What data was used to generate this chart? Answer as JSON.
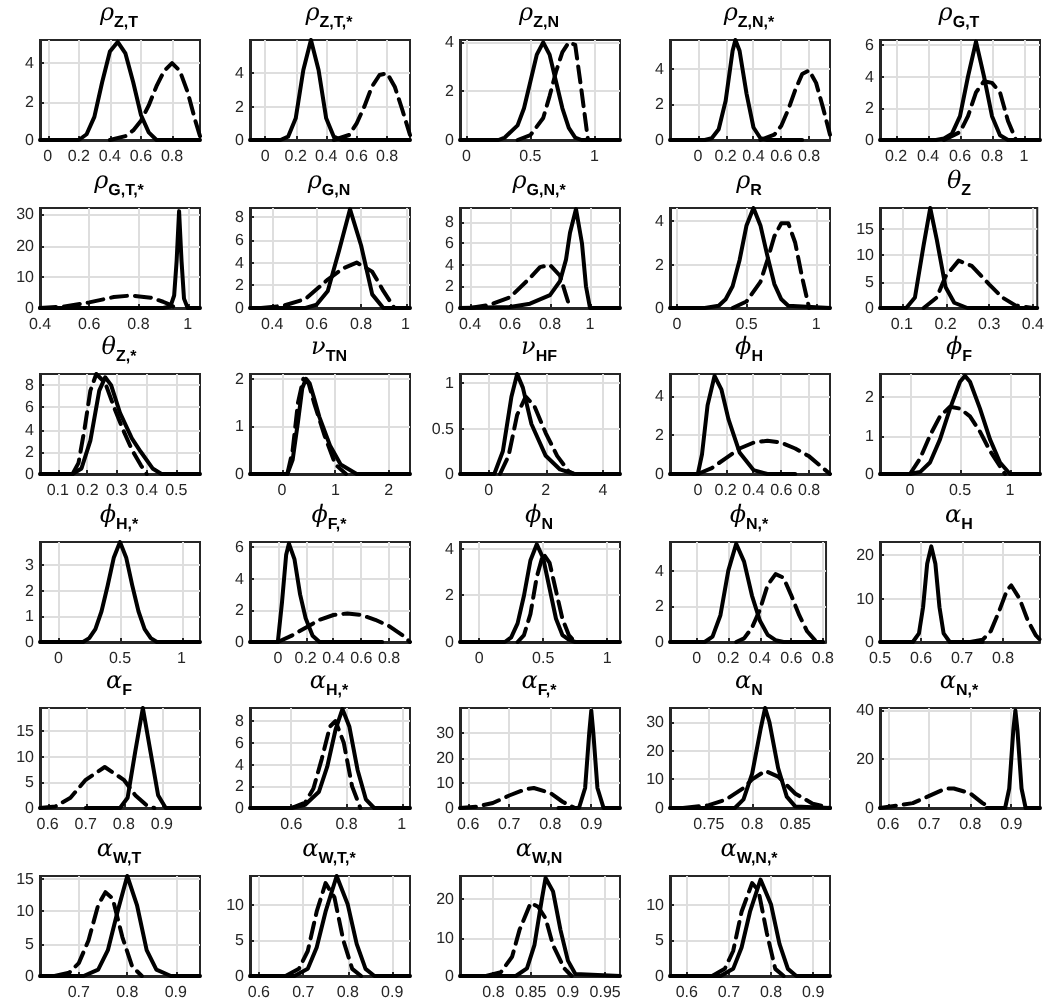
{
  "chart_data": [
    {
      "type": "line",
      "title": "ρ$_{Z,T}$",
      "xlim": [
        -0.05,
        0.98
      ],
      "xticks": [
        0,
        0.2,
        0.4,
        0.6,
        0.8
      ],
      "ylim": [
        0,
        5.2
      ],
      "yticks": [
        0,
        2,
        4
      ],
      "grid": true,
      "marker": "none",
      "series": [
        {
          "color": "#000000",
          "line_style": "solid",
          "x": [
            -0.05,
            0.2,
            0.25,
            0.3,
            0.35,
            0.4,
            0.45,
            0.5,
            0.55,
            0.6,
            0.65,
            0.7,
            0.98
          ],
          "values": [
            0,
            0,
            0.3,
            1.2,
            3.0,
            4.6,
            5.1,
            4.5,
            3.0,
            1.3,
            0.4,
            0,
            0
          ]
        },
        {
          "color": "#000000",
          "line_style": "dashed",
          "x": [
            0.4,
            0.5,
            0.55,
            0.6,
            0.65,
            0.7,
            0.75,
            0.8,
            0.85,
            0.9,
            0.95,
            0.98
          ],
          "values": [
            0,
            0.2,
            0.5,
            1.0,
            1.8,
            2.8,
            3.6,
            4.0,
            3.6,
            2.5,
            1.0,
            0.2
          ]
        }
      ]
    },
    {
      "type": "line",
      "title": "ρ$_{Z,T,*}$",
      "xlim": [
        -0.1,
        0.95
      ],
      "xticks": [
        0,
        0.2,
        0.4,
        0.6,
        0.8
      ],
      "ylim": [
        0,
        6
      ],
      "yticks": [
        0,
        2,
        4
      ],
      "grid": true,
      "marker": "none",
      "series": [
        {
          "color": "#000000",
          "line_style": "solid",
          "x": [
            -0.1,
            0.1,
            0.15,
            0.2,
            0.25,
            0.3,
            0.35,
            0.4,
            0.45,
            0.5,
            0.95
          ],
          "values": [
            0,
            0,
            0.2,
            1.3,
            4.2,
            6.0,
            4.2,
            1.3,
            0.2,
            0,
            0
          ]
        },
        {
          "color": "#000000",
          "line_style": "dashed",
          "x": [
            0.45,
            0.55,
            0.6,
            0.65,
            0.7,
            0.75,
            0.8,
            0.85,
            0.9,
            0.95
          ],
          "values": [
            0,
            0.3,
            1.0,
            2.0,
            3.2,
            3.9,
            4.0,
            3.2,
            1.8,
            0.3
          ]
        }
      ]
    },
    {
      "type": "line",
      "title": "ρ$_{Z,N}$",
      "xlim": [
        -0.05,
        1.2
      ],
      "xticks": [
        0,
        0.5,
        1
      ],
      "ylim": [
        0,
        4.1
      ],
      "yticks": [
        0,
        2,
        4
      ],
      "grid": true,
      "marker": "none",
      "series": [
        {
          "color": "#000000",
          "line_style": "solid",
          "x": [
            -0.05,
            0.25,
            0.3,
            0.4,
            0.45,
            0.5,
            0.55,
            0.6,
            0.65,
            0.7,
            0.75,
            0.8,
            0.85,
            0.9,
            1.2
          ],
          "values": [
            0,
            0,
            0.1,
            0.6,
            1.3,
            2.4,
            3.5,
            4.0,
            3.5,
            2.4,
            1.3,
            0.5,
            0.1,
            0,
            0
          ]
        },
        {
          "color": "#000000",
          "line_style": "dashed",
          "x": [
            0.4,
            0.5,
            0.6,
            0.65,
            0.7,
            0.75,
            0.8,
            0.85,
            0.9,
            0.95
          ],
          "values": [
            0,
            0.2,
            0.9,
            1.8,
            2.8,
            3.6,
            4.0,
            3.9,
            2.0,
            0
          ]
        }
      ]
    },
    {
      "type": "line",
      "title": "ρ$_{Z,N,*}$",
      "xlim": [
        -0.2,
        0.95
      ],
      "xticks": [
        0,
        0.2,
        0.4,
        0.6,
        0.8
      ],
      "ylim": [
        0,
        5.6
      ],
      "yticks": [
        0,
        2,
        4
      ],
      "grid": true,
      "marker": "none",
      "series": [
        {
          "color": "#000000",
          "line_style": "solid",
          "x": [
            -0.2,
            0.05,
            0.1,
            0.15,
            0.2,
            0.25,
            0.27,
            0.3,
            0.35,
            0.4,
            0.45,
            0.5,
            0.75
          ],
          "values": [
            0,
            0,
            0.1,
            0.6,
            2.2,
            5.0,
            5.6,
            5.0,
            2.6,
            0.7,
            0.1,
            0,
            0
          ]
        },
        {
          "color": "#000000",
          "line_style": "dashed",
          "x": [
            0.45,
            0.55,
            0.6,
            0.65,
            0.7,
            0.75,
            0.8,
            0.85,
            0.9,
            0.95
          ],
          "values": [
            0,
            0.3,
            0.8,
            1.7,
            2.8,
            3.7,
            3.9,
            3.2,
            1.8,
            0.3
          ]
        }
      ]
    },
    {
      "type": "line",
      "title": "ρ$_{G,T}$",
      "xlim": [
        0.1,
        1.1
      ],
      "xticks": [
        0.2,
        0.4,
        0.6,
        0.8,
        1
      ],
      "ylim": [
        0,
        6.3
      ],
      "yticks": [
        0,
        2,
        4,
        6
      ],
      "grid": true,
      "marker": "none",
      "series": [
        {
          "color": "#000000",
          "line_style": "solid",
          "x": [
            0.1,
            0.45,
            0.5,
            0.55,
            0.6,
            0.65,
            0.7,
            0.75,
            0.8,
            0.85,
            0.9,
            1.1
          ],
          "values": [
            0,
            0,
            0.1,
            0.4,
            1.5,
            4.0,
            6.2,
            4.0,
            1.5,
            0.3,
            0,
            0
          ]
        },
        {
          "color": "#000000",
          "line_style": "dashed",
          "x": [
            0.5,
            0.6,
            0.65,
            0.7,
            0.75,
            0.8,
            0.85,
            0.9,
            0.95
          ],
          "values": [
            0,
            0.5,
            1.5,
            3.0,
            3.7,
            3.6,
            3.0,
            1.2,
            0
          ]
        }
      ]
    },
    {
      "type": "line",
      "title": "ρ$_{G,T,*}$",
      "xlim": [
        0.4,
        1.05
      ],
      "xticks": [
        0.4,
        0.6,
        0.8,
        1
      ],
      "ylim": [
        0,
        32
      ],
      "yticks": [
        0,
        10,
        20,
        30
      ],
      "grid": true,
      "marker": "none",
      "series": [
        {
          "color": "#000000",
          "line_style": "solid",
          "x": [
            0.4,
            0.9,
            0.93,
            0.945,
            0.955,
            0.965,
            0.975,
            0.985,
            1.0,
            1.05
          ],
          "values": [
            0,
            0,
            0.5,
            4,
            15,
            31,
            15,
            3,
            0,
            0
          ]
        },
        {
          "color": "#000000",
          "line_style": "dashed",
          "x": [
            0.4,
            0.5,
            0.6,
            0.7,
            0.77,
            0.85,
            0.9,
            0.93,
            0.95
          ],
          "values": [
            0,
            0.5,
            1.8,
            3.5,
            4.0,
            3.3,
            2.0,
            1.0,
            0
          ]
        }
      ]
    },
    {
      "type": "line",
      "title": "ρ$_{G,N}$",
      "xlim": [
        0.3,
        1.02
      ],
      "xticks": [
        0.4,
        0.6,
        0.8,
        1
      ],
      "ylim": [
        0,
        8.8
      ],
      "yticks": [
        0,
        2,
        4,
        6,
        8
      ],
      "grid": true,
      "marker": "none",
      "series": [
        {
          "color": "#000000",
          "line_style": "solid",
          "x": [
            0.3,
            0.55,
            0.6,
            0.65,
            0.7,
            0.75,
            0.8,
            0.85,
            0.9,
            1.02
          ],
          "values": [
            0,
            0,
            0.3,
            1.5,
            5.0,
            8.7,
            5.5,
            1.2,
            0,
            0
          ]
        },
        {
          "color": "#000000",
          "line_style": "dashed",
          "x": [
            0.35,
            0.45,
            0.55,
            0.65,
            0.72,
            0.78,
            0.85,
            0.9,
            0.95
          ],
          "values": [
            0,
            0.2,
            0.8,
            2.5,
            3.5,
            4.0,
            3.2,
            1.5,
            0
          ]
        }
      ]
    },
    {
      "type": "line",
      "title": "ρ$_{G,N,*}$",
      "xlim": [
        0.35,
        1.15
      ],
      "xticks": [
        0.4,
        0.6,
        0.8,
        1
      ],
      "ylim": [
        0,
        9.3
      ],
      "yticks": [
        0,
        2,
        4,
        6,
        8
      ],
      "grid": true,
      "marker": "none",
      "series": [
        {
          "color": "#000000",
          "line_style": "solid",
          "x": [
            0.35,
            0.6,
            0.7,
            0.8,
            0.85,
            0.88,
            0.9,
            0.93,
            0.96,
            0.98,
            1.0,
            1.15
          ],
          "values": [
            0,
            0.1,
            0.4,
            1.2,
            2.5,
            4.5,
            7.0,
            9.2,
            6.0,
            2.0,
            0,
            0
          ]
        },
        {
          "color": "#000000",
          "line_style": "dashed",
          "x": [
            0.4,
            0.5,
            0.6,
            0.7,
            0.75,
            0.8,
            0.85,
            0.88,
            0.9
          ],
          "values": [
            0,
            0.3,
            1.0,
            2.8,
            3.8,
            4.0,
            3.0,
            1.2,
            0
          ]
        }
      ]
    },
    {
      "type": "line",
      "title": "ρ$_{R}$",
      "xlim": [
        -0.05,
        1.1
      ],
      "xticks": [
        0,
        0.5,
        1
      ],
      "ylim": [
        0,
        4.6
      ],
      "yticks": [
        0,
        2,
        4
      ],
      "grid": true,
      "marker": "none",
      "series": [
        {
          "color": "#000000",
          "line_style": "solid",
          "x": [
            -0.05,
            0.2,
            0.3,
            0.35,
            0.4,
            0.45,
            0.5,
            0.55,
            0.6,
            0.65,
            0.7,
            0.75,
            0.8,
            1.1
          ],
          "values": [
            0,
            0,
            0.1,
            0.4,
            1.0,
            2.2,
            3.8,
            4.6,
            3.8,
            2.4,
            1.1,
            0.4,
            0.1,
            0
          ]
        },
        {
          "color": "#000000",
          "line_style": "dashed",
          "x": [
            0.4,
            0.5,
            0.6,
            0.65,
            0.7,
            0.75,
            0.8,
            0.85,
            0.9,
            0.95
          ],
          "values": [
            0,
            0.3,
            1.2,
            2.2,
            3.3,
            3.9,
            3.9,
            3.0,
            1.4,
            0
          ]
        }
      ]
    },
    {
      "type": "line",
      "title": "θ$_{Z}$",
      "xlim": [
        0.05,
        0.41
      ],
      "xticks": [
        0.1,
        0.2,
        0.3,
        0.4
      ],
      "ylim": [
        0,
        19
      ],
      "yticks": [
        0,
        5,
        10,
        15
      ],
      "grid": true,
      "marker": "none",
      "series": [
        {
          "color": "#000000",
          "line_style": "solid",
          "x": [
            0.05,
            0.11,
            0.13,
            0.15,
            0.165,
            0.18,
            0.2,
            0.22,
            0.25,
            0.41
          ],
          "values": [
            0,
            0,
            2,
            12,
            19,
            13,
            4,
            1,
            0,
            0
          ]
        },
        {
          "color": "#000000",
          "line_style": "dashed",
          "x": [
            0.15,
            0.18,
            0.2,
            0.23,
            0.26,
            0.3,
            0.33,
            0.36,
            0.4
          ],
          "values": [
            0,
            2,
            6,
            9,
            8,
            4.5,
            2,
            0.5,
            0
          ]
        }
      ]
    },
    {
      "type": "line",
      "title": "θ$_{Z,*}$",
      "xlim": [
        0.04,
        0.58
      ],
      "xticks": [
        0.1,
        0.2,
        0.3,
        0.4,
        0.5
      ],
      "ylim": [
        0,
        9
      ],
      "yticks": [
        0,
        2,
        4,
        6,
        8
      ],
      "grid": true,
      "marker": "none",
      "series": [
        {
          "color": "#000000",
          "line_style": "solid",
          "x": [
            0.04,
            0.15,
            0.18,
            0.21,
            0.24,
            0.26,
            0.28,
            0.31,
            0.35,
            0.38,
            0.42,
            0.45,
            0.58
          ],
          "values": [
            0,
            0,
            0.5,
            3,
            7.5,
            8.7,
            8,
            5.5,
            3.2,
            2,
            0.5,
            0,
            0
          ]
        },
        {
          "color": "#000000",
          "line_style": "dashed",
          "x": [
            0.15,
            0.17,
            0.19,
            0.21,
            0.23,
            0.26,
            0.29,
            0.32,
            0.35,
            0.38,
            0.4
          ],
          "values": [
            0,
            1,
            4,
            7.5,
            9,
            8.2,
            6,
            4,
            2.2,
            0.8,
            0
          ]
        }
      ]
    },
    {
      "type": "line",
      "title": "ν$_{TN}$",
      "xlim": [
        -0.6,
        2.4
      ],
      "xticks": [
        0,
        1,
        2
      ],
      "ylim": [
        0,
        2.1
      ],
      "yticks": [
        0,
        1,
        2
      ],
      "grid": true,
      "marker": "none",
      "series": [
        {
          "color": "#000000",
          "line_style": "solid",
          "x": [
            -0.6,
            0.1,
            0.2,
            0.3,
            0.38,
            0.45,
            0.52,
            0.6,
            0.7,
            0.9,
            1.1,
            1.4,
            2.4
          ],
          "values": [
            0,
            0,
            0.3,
            1.1,
            1.8,
            2.0,
            1.9,
            1.6,
            1.2,
            0.6,
            0.2,
            0,
            0
          ]
        },
        {
          "color": "#000000",
          "line_style": "dashed",
          "x": [
            0.1,
            0.2,
            0.3,
            0.4,
            0.5,
            0.6,
            0.8,
            1.0,
            1.2
          ],
          "values": [
            0,
            0.5,
            1.5,
            2.0,
            1.9,
            1.5,
            0.8,
            0.2,
            0
          ]
        }
      ]
    },
    {
      "type": "line",
      "title": "ν$_{HF}$",
      "xlim": [
        -1,
        4.6
      ],
      "xticks": [
        0,
        2,
        4
      ],
      "ylim": [
        0,
        1.1
      ],
      "yticks": [
        0,
        0.5,
        1
      ],
      "grid": true,
      "marker": "none",
      "series": [
        {
          "color": "#000000",
          "line_style": "solid",
          "x": [
            -1,
            0.2,
            0.5,
            0.8,
            1.0,
            1.2,
            1.5,
            2.0,
            2.5,
            3.0,
            4.6
          ],
          "values": [
            0,
            0,
            0.25,
            0.85,
            1.1,
            0.95,
            0.55,
            0.2,
            0.05,
            0,
            0
          ]
        },
        {
          "color": "#000000",
          "line_style": "dashed",
          "x": [
            0.4,
            0.7,
            1.0,
            1.3,
            1.6,
            2.0,
            2.4,
            2.8,
            3.0
          ],
          "values": [
            0,
            0.2,
            0.65,
            0.85,
            0.75,
            0.45,
            0.2,
            0.03,
            0
          ]
        }
      ]
    },
    {
      "type": "line",
      "title": "ϕ$_{H}$",
      "xlim": [
        -0.2,
        0.95
      ],
      "xticks": [
        0,
        0.2,
        0.4,
        0.6,
        0.8
      ],
      "ylim": [
        0,
        5.1
      ],
      "yticks": [
        0,
        2,
        4
      ],
      "grid": true,
      "marker": "none",
      "series": [
        {
          "color": "#000000",
          "line_style": "solid",
          "x": [
            -0.2,
            0,
            0.03,
            0.07,
            0.12,
            0.17,
            0.22,
            0.3,
            0.4,
            0.5,
            0.7
          ],
          "values": [
            0,
            0,
            1,
            3.5,
            5,
            4.3,
            2.8,
            1.1,
            0.2,
            0,
            0
          ]
        },
        {
          "color": "#000000",
          "line_style": "dashed",
          "x": [
            0,
            0.1,
            0.2,
            0.3,
            0.4,
            0.5,
            0.6,
            0.7,
            0.8,
            0.9,
            0.95
          ],
          "values": [
            0,
            0.3,
            0.8,
            1.3,
            1.6,
            1.7,
            1.6,
            1.3,
            0.9,
            0.3,
            0
          ]
        }
      ]
    },
    {
      "type": "line",
      "title": "ϕ$_{F}$",
      "xlim": [
        -0.3,
        1.3
      ],
      "xticks": [
        0,
        0.5,
        1
      ],
      "ylim": [
        0,
        2.6
      ],
      "yticks": [
        0,
        1,
        2
      ],
      "grid": true,
      "marker": "none",
      "series": [
        {
          "color": "#000000",
          "line_style": "solid",
          "x": [
            -0.3,
            0,
            0.1,
            0.2,
            0.3,
            0.4,
            0.5,
            0.55,
            0.6,
            0.7,
            0.8,
            0.9,
            1.0,
            1.3
          ],
          "values": [
            0,
            0,
            0.05,
            0.3,
            0.9,
            1.7,
            2.4,
            2.55,
            2.4,
            1.7,
            0.9,
            0.3,
            0,
            0
          ]
        },
        {
          "color": "#000000",
          "line_style": "dashed",
          "x": [
            0,
            0.1,
            0.2,
            0.3,
            0.4,
            0.5,
            0.6,
            0.7,
            0.8,
            0.9,
            0.95
          ],
          "values": [
            0,
            0.4,
            1.0,
            1.5,
            1.75,
            1.7,
            1.5,
            1.1,
            0.6,
            0.2,
            0
          ]
        }
      ]
    },
    {
      "type": "line",
      "title": "ϕ$_{H,*}$",
      "xlim": [
        -0.15,
        1.15
      ],
      "xticks": [
        0,
        0.5,
        1
      ],
      "ylim": [
        0,
        3.9
      ],
      "yticks": [
        0,
        1,
        2,
        3
      ],
      "grid": true,
      "marker": "none",
      "series": [
        {
          "color": "#000000",
          "line_style": "solid",
          "x": [
            -0.15,
            0.2,
            0.25,
            0.3,
            0.35,
            0.4,
            0.45,
            0.5,
            0.55,
            0.6,
            0.65,
            0.7,
            0.75,
            0.8,
            1.15
          ],
          "values": [
            0,
            0,
            0.15,
            0.5,
            1.2,
            2.2,
            3.3,
            3.9,
            3.3,
            2.2,
            1.2,
            0.5,
            0.15,
            0,
            0
          ]
        }
      ]
    },
    {
      "type": "line",
      "title": "ϕ$_{F,*}$",
      "xlim": [
        -0.2,
        0.95
      ],
      "xticks": [
        0,
        0.2,
        0.4,
        0.6,
        0.8
      ],
      "ylim": [
        0,
        6.3
      ],
      "yticks": [
        0,
        2,
        4,
        6
      ],
      "grid": true,
      "marker": "none",
      "series": [
        {
          "color": "#000000",
          "line_style": "solid",
          "x": [
            -0.2,
            0,
            0.03,
            0.06,
            0.08,
            0.12,
            0.16,
            0.2,
            0.25,
            0.3,
            0.75
          ],
          "values": [
            0,
            0,
            2.5,
            5.5,
            6.2,
            5.2,
            3,
            1.5,
            0.4,
            0,
            0
          ]
        },
        {
          "color": "#000000",
          "line_style": "dashed",
          "x": [
            0,
            0.1,
            0.2,
            0.3,
            0.4,
            0.5,
            0.6,
            0.7,
            0.8,
            0.9,
            0.95
          ],
          "values": [
            0,
            0.4,
            0.9,
            1.4,
            1.7,
            1.8,
            1.7,
            1.4,
            1.0,
            0.4,
            0
          ]
        }
      ]
    },
    {
      "type": "line",
      "title": "ϕ$_{N}$",
      "xlim": [
        -0.15,
        1.1
      ],
      "xticks": [
        0,
        0.5,
        1
      ],
      "ylim": [
        0,
        4.3
      ],
      "yticks": [
        0,
        2,
        4
      ],
      "grid": true,
      "marker": "none",
      "series": [
        {
          "color": "#000000",
          "line_style": "solid",
          "x": [
            -0.15,
            0.2,
            0.25,
            0.3,
            0.35,
            0.4,
            0.45,
            0.5,
            0.55,
            0.6,
            0.65,
            0.7,
            0.75,
            1.1
          ],
          "values": [
            0,
            0,
            0.2,
            0.8,
            2.0,
            3.5,
            4.2,
            3.6,
            2.3,
            1.0,
            0.3,
            0.1,
            0,
            0
          ]
        },
        {
          "color": "#000000",
          "line_style": "dashed",
          "x": [
            0.3,
            0.35,
            0.4,
            0.45,
            0.5,
            0.55,
            0.6,
            0.65,
            0.7,
            0.75
          ],
          "values": [
            0,
            0.3,
            1.2,
            2.8,
            3.8,
            3.4,
            2.2,
            1.0,
            0.3,
            0
          ]
        }
      ]
    },
    {
      "type": "line",
      "title": "ϕ$_{N,*}$",
      "xlim": [
        -0.17,
        0.82
      ],
      "xticks": [
        0,
        0.2,
        0.4,
        0.6,
        0.8
      ],
      "ylim": [
        0,
        5.6
      ],
      "yticks": [
        0,
        2,
        4
      ],
      "grid": true,
      "marker": "none",
      "series": [
        {
          "color": "#000000",
          "line_style": "solid",
          "x": [
            -0.17,
            0.05,
            0.1,
            0.15,
            0.2,
            0.25,
            0.3,
            0.35,
            0.4,
            0.45,
            0.5,
            0.55,
            0.8
          ],
          "values": [
            0,
            0,
            0.3,
            1.5,
            4.0,
            5.5,
            4.5,
            2.6,
            1.2,
            0.4,
            0.1,
            0,
            0
          ]
        },
        {
          "color": "#000000",
          "line_style": "dashed",
          "x": [
            0.25,
            0.3,
            0.35,
            0.4,
            0.45,
            0.5,
            0.55,
            0.6,
            0.65,
            0.7,
            0.75,
            0.8
          ],
          "values": [
            0,
            0.2,
            0.8,
            1.8,
            3.2,
            3.8,
            3.6,
            2.6,
            1.5,
            0.6,
            0.1,
            0
          ]
        }
      ]
    },
    {
      "type": "line",
      "title": "α$_{H}$",
      "xlim": [
        0.5,
        0.89
      ],
      "xticks": [
        0.5,
        0.6,
        0.7,
        0.8
      ],
      "ylim": [
        0,
        23
      ],
      "yticks": [
        0,
        10,
        20
      ],
      "grid": true,
      "marker": "none",
      "series": [
        {
          "color": "#000000",
          "line_style": "solid",
          "x": [
            0.5,
            0.58,
            0.595,
            0.605,
            0.615,
            0.625,
            0.635,
            0.645,
            0.655,
            0.67,
            0.75
          ],
          "values": [
            0,
            0,
            2,
            8,
            18,
            22,
            18,
            8,
            2,
            0,
            0
          ]
        },
        {
          "color": "#000000",
          "line_style": "dashed",
          "x": [
            0.72,
            0.75,
            0.77,
            0.79,
            0.81,
            0.82,
            0.84,
            0.86,
            0.88,
            0.89
          ],
          "values": [
            0,
            0.5,
            2.5,
            7,
            12,
            13,
            10,
            5,
            1.5,
            0.5
          ]
        }
      ]
    },
    {
      "type": "line",
      "title": "α$_{F}$",
      "xlim": [
        0.58,
        1.0
      ],
      "xticks": [
        0.6,
        0.7,
        0.8,
        0.9
      ],
      "ylim": [
        0,
        19.5
      ],
      "yticks": [
        0,
        5,
        10,
        15
      ],
      "grid": true,
      "marker": "none",
      "series": [
        {
          "color": "#000000",
          "line_style": "solid",
          "x": [
            0.7,
            0.79,
            0.81,
            0.83,
            0.85,
            0.87,
            0.89,
            0.91,
            1.0
          ],
          "values": [
            0,
            0,
            2,
            11,
            19.5,
            11,
            2.5,
            0,
            0
          ]
        },
        {
          "color": "#000000",
          "line_style": "dashed",
          "x": [
            0.58,
            0.62,
            0.66,
            0.7,
            0.75,
            0.8,
            0.83,
            0.86,
            0.88
          ],
          "values": [
            0,
            0.3,
            2,
            5.5,
            8,
            5.5,
            2.5,
            0.5,
            0
          ]
        }
      ]
    },
    {
      "type": "line",
      "title": "α$_{H,*}$",
      "xlim": [
        0.45,
        1.03
      ],
      "xticks": [
        0.6,
        0.8,
        1
      ],
      "ylim": [
        0,
        9.2
      ],
      "yticks": [
        0,
        2,
        4,
        6,
        8
      ],
      "grid": true,
      "marker": "none",
      "series": [
        {
          "color": "#000000",
          "line_style": "solid",
          "x": [
            0.45,
            0.6,
            0.65,
            0.7,
            0.73,
            0.76,
            0.785,
            0.81,
            0.84,
            0.87,
            0.9,
            1.03
          ],
          "values": [
            0,
            0,
            0.3,
            1.5,
            3.8,
            7.2,
            9.1,
            7.5,
            3.5,
            0.8,
            0,
            0
          ]
        },
        {
          "color": "#000000",
          "line_style": "dashed",
          "x": [
            0.6,
            0.65,
            0.68,
            0.71,
            0.74,
            0.76,
            0.79,
            0.82,
            0.85
          ],
          "values": [
            0,
            0.5,
            1.8,
            4.5,
            7.5,
            8,
            6,
            2,
            0
          ]
        }
      ]
    },
    {
      "type": "line",
      "title": "α$_{F,*}$",
      "xlim": [
        0.58,
        0.97
      ],
      "xticks": [
        0.6,
        0.7,
        0.8,
        0.9
      ],
      "ylim": [
        0,
        40
      ],
      "yticks": [
        0,
        10,
        20,
        30
      ],
      "grid": true,
      "marker": "none",
      "series": [
        {
          "color": "#000000",
          "line_style": "solid",
          "x": [
            0.82,
            0.87,
            0.885,
            0.895,
            0.9,
            0.905,
            0.915,
            0.93,
            0.97
          ],
          "values": [
            0,
            0,
            8,
            30,
            39,
            30,
            8,
            0,
            0
          ]
        },
        {
          "color": "#000000",
          "line_style": "dashed",
          "x": [
            0.58,
            0.62,
            0.66,
            0.7,
            0.74,
            0.76,
            0.8,
            0.83,
            0.86
          ],
          "values": [
            0,
            0.5,
            2,
            5,
            7.5,
            8,
            6,
            2.5,
            0
          ]
        }
      ]
    },
    {
      "type": "line",
      "title": "α$_{N}$",
      "xlim": [
        0.705,
        0.89
      ],
      "xticks": [
        0.75,
        0.8,
        0.85
      ],
      "ylim": [
        0,
        35
      ],
      "yticks": [
        0,
        10,
        20,
        30
      ],
      "grid": true,
      "marker": "none",
      "series": [
        {
          "color": "#000000",
          "line_style": "solid",
          "x": [
            0.705,
            0.78,
            0.79,
            0.8,
            0.81,
            0.815,
            0.82,
            0.83,
            0.84,
            0.85,
            0.89
          ],
          "values": [
            0,
            0,
            3,
            12,
            28,
            35,
            30,
            14,
            4,
            0.5,
            0
          ]
        },
        {
          "color": "#000000",
          "line_style": "dashed",
          "x": [
            0.72,
            0.75,
            0.77,
            0.79,
            0.8,
            0.815,
            0.83,
            0.85,
            0.87,
            0.89
          ],
          "values": [
            0,
            1,
            3,
            7,
            10,
            13,
            11,
            5,
            1.5,
            0
          ]
        }
      ]
    },
    {
      "type": "line",
      "title": "α$_{N,*}$",
      "xlim": [
        0.58,
        0.97
      ],
      "xticks": [
        0.6,
        0.7,
        0.8,
        0.9
      ],
      "ylim": [
        0,
        41
      ],
      "yticks": [
        0,
        20,
        40
      ],
      "grid": true,
      "marker": "none",
      "series": [
        {
          "color": "#000000",
          "line_style": "solid",
          "x": [
            0.84,
            0.885,
            0.895,
            0.905,
            0.91,
            0.915,
            0.925,
            0.935,
            0.97
          ],
          "values": [
            0,
            0,
            8,
            32,
            40,
            32,
            8,
            0,
            0
          ]
        },
        {
          "color": "#000000",
          "line_style": "dashed",
          "x": [
            0.58,
            0.62,
            0.66,
            0.7,
            0.74,
            0.76,
            0.8,
            0.83,
            0.85
          ],
          "values": [
            0,
            1,
            2,
            5,
            8,
            8,
            6,
            2,
            0
          ]
        }
      ]
    },
    {
      "type": "line",
      "title": "α$_{W,T}$",
      "xlim": [
        0.62,
        0.95
      ],
      "xticks": [
        0.7,
        0.8,
        0.9
      ],
      "ylim": [
        0,
        15.5
      ],
      "yticks": [
        0,
        5,
        10,
        15
      ],
      "grid": true,
      "marker": "none",
      "series": [
        {
          "color": "#000000",
          "line_style": "solid",
          "x": [
            0.62,
            0.71,
            0.74,
            0.76,
            0.78,
            0.8,
            0.82,
            0.84,
            0.86,
            0.89,
            0.95
          ],
          "values": [
            0,
            0,
            1,
            4,
            10,
            15.5,
            11,
            4,
            1,
            0,
            0
          ]
        },
        {
          "color": "#000000",
          "line_style": "dashed",
          "x": [
            0.65,
            0.68,
            0.7,
            0.72,
            0.74,
            0.755,
            0.77,
            0.79,
            0.81,
            0.83
          ],
          "values": [
            0,
            0.5,
            2,
            5.5,
            11,
            13,
            12,
            6,
            1.5,
            0
          ]
        }
      ]
    },
    {
      "type": "line",
      "title": "α$_{W,T,*}$",
      "xlim": [
        0.58,
        0.94
      ],
      "xticks": [
        0.6,
        0.7,
        0.8,
        0.9
      ],
      "ylim": [
        0,
        14
      ],
      "yticks": [
        0,
        5,
        10
      ],
      "grid": true,
      "marker": "none",
      "series": [
        {
          "color": "#000000",
          "line_style": "solid",
          "x": [
            0.58,
            0.68,
            0.71,
            0.73,
            0.75,
            0.775,
            0.8,
            0.82,
            0.84,
            0.86,
            0.94
          ],
          "values": [
            0,
            0,
            1,
            4,
            9,
            14,
            10,
            4.5,
            1,
            0,
            0
          ]
        },
        {
          "color": "#000000",
          "line_style": "dashed",
          "x": [
            0.66,
            0.69,
            0.71,
            0.73,
            0.75,
            0.77,
            0.79,
            0.81,
            0.83
          ],
          "values": [
            0,
            1,
            3.5,
            9,
            13,
            11,
            5,
            1,
            0
          ]
        }
      ]
    },
    {
      "type": "line",
      "title": "α$_{W,N}$",
      "xlim": [
        0.755,
        0.97
      ],
      "xticks": [
        0.8,
        0.85,
        0.9,
        0.95
      ],
      "ylim": [
        0,
        26
      ],
      "yticks": [
        0,
        10,
        20
      ],
      "grid": true,
      "marker": "none",
      "series": [
        {
          "color": "#000000",
          "line_style": "solid",
          "x": [
            0.755,
            0.83,
            0.845,
            0.855,
            0.865,
            0.87,
            0.88,
            0.89,
            0.9,
            0.91,
            0.97
          ],
          "values": [
            0,
            0,
            2,
            8,
            20,
            25.5,
            22,
            12,
            4,
            0.5,
            0
          ]
        },
        {
          "color": "#000000",
          "line_style": "dashed",
          "x": [
            0.79,
            0.81,
            0.825,
            0.835,
            0.85,
            0.86,
            0.87,
            0.88,
            0.895,
            0.905
          ],
          "values": [
            0,
            1,
            5,
            12,
            19,
            18,
            15,
            8,
            2,
            0
          ]
        }
      ]
    },
    {
      "type": "line",
      "title": "α$_{W,N,*}$",
      "xlim": [
        0.56,
        0.94
      ],
      "xticks": [
        0.6,
        0.7,
        0.8,
        0.9
      ],
      "ylim": [
        0,
        14
      ],
      "yticks": [
        0,
        5,
        10
      ],
      "grid": true,
      "marker": "none",
      "series": [
        {
          "color": "#000000",
          "line_style": "solid",
          "x": [
            0.56,
            0.68,
            0.71,
            0.73,
            0.75,
            0.775,
            0.8,
            0.82,
            0.84,
            0.86,
            0.94
          ],
          "values": [
            0,
            0,
            1,
            4,
            9,
            13.5,
            10,
            4.5,
            1,
            0,
            0
          ]
        },
        {
          "color": "#000000",
          "line_style": "dashed",
          "x": [
            0.66,
            0.69,
            0.71,
            0.73,
            0.755,
            0.77,
            0.79,
            0.81,
            0.83
          ],
          "values": [
            0,
            1,
            3.5,
            9,
            13,
            12,
            6,
            1,
            0
          ]
        }
      ]
    }
  ]
}
